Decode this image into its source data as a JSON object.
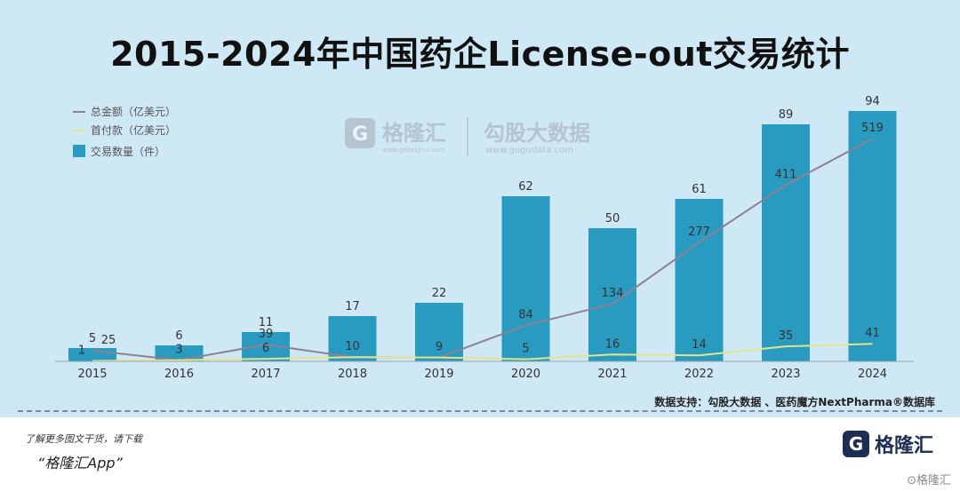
{
  "title": "2015-2024年中国药企License-out交易统计",
  "watermark": {
    "logo_glyph": "G",
    "brand_cn": "格隆汇",
    "brand_pinyin": "www.gelonghui.com",
    "partner_cn": "勾股大数据",
    "partner_url": "www.gogudata.com"
  },
  "source": "数据支持：勾股大数据 、医药魔方NextPharma®数据库",
  "footer": {
    "note": "了解更多图文干货，请下载",
    "app": "“格隆汇App”",
    "brand_logo": "G",
    "brand_name": "格隆汇",
    "corner": "⊙格隆汇"
  },
  "chart_data": {
    "type": "bar",
    "categories": [
      "2015",
      "2016",
      "2017",
      "2018",
      "2019",
      "2020",
      "2021",
      "2022",
      "2023",
      "2024"
    ],
    "series": [
      {
        "name": "总金额（亿美元）",
        "kind": "line",
        "color": "#8e7f93",
        "values": [
          25,
          3,
          39,
          10,
          9,
          84,
          134,
          277,
          411,
          519
        ]
      },
      {
        "name": "首付款（亿美元）",
        "kind": "line",
        "color": "#e3e58a",
        "values": [
          1,
          3,
          6,
          10,
          9,
          5,
          16,
          14,
          35,
          41
        ]
      },
      {
        "name": "交易数量（件）",
        "kind": "bar",
        "color": "#2a9bc0",
        "values": [
          5,
          6,
          11,
          17,
          22,
          62,
          50,
          61,
          89,
          94
        ]
      }
    ],
    "ylim_bar": [
      0,
      100
    ],
    "ylim_line": [
      0,
      600
    ]
  }
}
